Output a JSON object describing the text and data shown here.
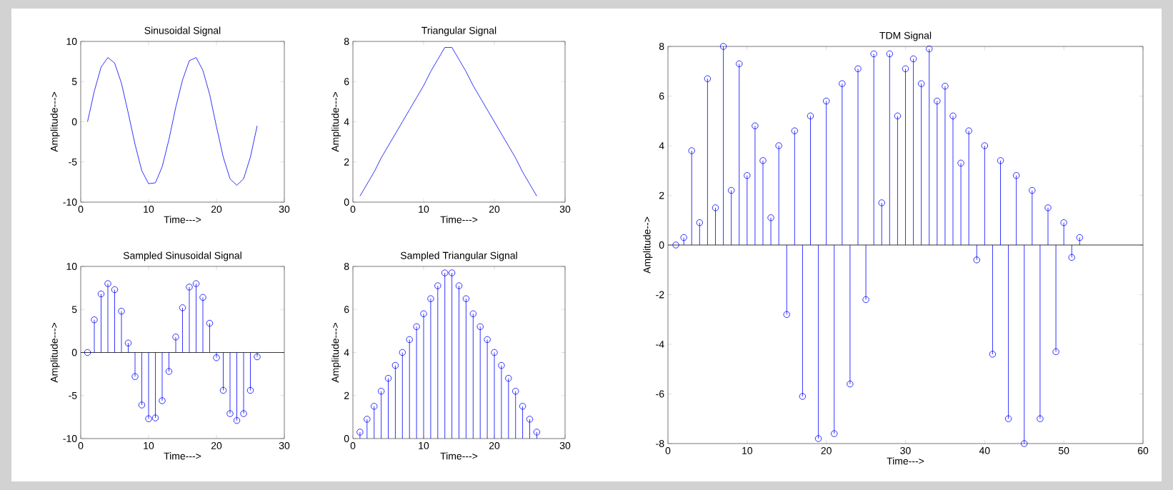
{
  "chart_data": [
    {
      "type": "line",
      "title": "Sinusoidal Signal",
      "xlabel": "Time--->",
      "ylabel": "Amplitude--->",
      "xlim": [
        0,
        30
      ],
      "ylim": [
        -10,
        10
      ],
      "xticks": [
        0,
        10,
        20,
        30
      ],
      "yticks": [
        -10,
        -5,
        0,
        5,
        10
      ],
      "color": "#0000ff",
      "x": [
        1,
        2,
        3,
        4,
        5,
        6,
        7,
        8,
        9,
        10,
        11,
        12,
        13,
        14,
        15,
        16,
        17,
        18,
        19,
        20,
        21,
        22,
        23,
        24,
        25,
        26
      ],
      "values": [
        0,
        3.8,
        6.8,
        8.0,
        7.3,
        4.8,
        1.1,
        -2.8,
        -6.1,
        -7.7,
        -7.6,
        -5.6,
        -2.2,
        1.8,
        5.2,
        7.6,
        8.0,
        6.4,
        3.4,
        -0.6,
        -4.4,
        -7.1,
        -7.9,
        -7.1,
        -4.4,
        -0.5
      ]
    },
    {
      "type": "line",
      "title": "Triangular Signal",
      "xlabel": "Time--->",
      "ylabel": "Amplitude--->",
      "xlim": [
        0,
        30
      ],
      "ylim": [
        0,
        8
      ],
      "xticks": [
        0,
        10,
        20,
        30
      ],
      "yticks": [
        0,
        2,
        4,
        6,
        8
      ],
      "color": "#0000ff",
      "x": [
        1,
        2,
        3,
        4,
        5,
        6,
        7,
        8,
        9,
        10,
        11,
        12,
        13,
        14,
        15,
        16,
        17,
        18,
        19,
        20,
        21,
        22,
        23,
        24,
        25,
        26
      ],
      "values": [
        0.3,
        0.9,
        1.5,
        2.2,
        2.8,
        3.4,
        4.0,
        4.6,
        5.2,
        5.8,
        6.5,
        7.1,
        7.7,
        7.7,
        7.1,
        6.5,
        5.8,
        5.2,
        4.6,
        4.0,
        3.4,
        2.8,
        2.2,
        1.5,
        0.9,
        0.3
      ]
    },
    {
      "type": "lollipop",
      "title": "Sampled Sinusoidal Signal",
      "xlabel": "Time--->",
      "ylabel": "Amplitude--->",
      "xlim": [
        0,
        30
      ],
      "ylim": [
        -10,
        10
      ],
      "xticks": [
        0,
        10,
        20,
        30
      ],
      "yticks": [
        -10,
        -5,
        0,
        5,
        10
      ],
      "color": "#0000ff",
      "marker": "circle",
      "ref_lines": [
        {
          "axis": "y",
          "value": 0,
          "color": "#000000"
        }
      ],
      "x": [
        1,
        2,
        3,
        4,
        5,
        6,
        7,
        8,
        9,
        10,
        11,
        12,
        13,
        14,
        15,
        16,
        17,
        18,
        19,
        20,
        21,
        22,
        23,
        24,
        25,
        26
      ],
      "values": [
        0,
        3.8,
        6.8,
        8.0,
        7.3,
        4.8,
        1.1,
        -2.8,
        -6.1,
        -7.7,
        -7.6,
        -5.6,
        -2.2,
        1.8,
        5.2,
        7.6,
        8.0,
        6.4,
        3.4,
        -0.6,
        -4.4,
        -7.1,
        -7.9,
        -7.1,
        -4.4,
        -0.5
      ]
    },
    {
      "type": "lollipop",
      "title": "Sampled Triangular Signal",
      "xlabel": "Time--->",
      "ylabel": "Amplitude--->",
      "xlim": [
        0,
        30
      ],
      "ylim": [
        0,
        8
      ],
      "xticks": [
        0,
        10,
        20,
        30
      ],
      "yticks": [
        0,
        2,
        4,
        6,
        8
      ],
      "color": "#0000ff",
      "marker": "circle",
      "x": [
        1,
        2,
        3,
        4,
        5,
        6,
        7,
        8,
        9,
        10,
        11,
        12,
        13,
        14,
        15,
        16,
        17,
        18,
        19,
        20,
        21,
        22,
        23,
        24,
        25,
        26
      ],
      "values": [
        0.3,
        0.9,
        1.5,
        2.2,
        2.8,
        3.4,
        4.0,
        4.6,
        5.2,
        5.8,
        6.5,
        7.1,
        7.7,
        7.7,
        7.1,
        6.5,
        5.8,
        5.2,
        4.6,
        4.0,
        3.4,
        2.8,
        2.2,
        1.5,
        0.9,
        0.3
      ]
    },
    {
      "type": "lollipop",
      "title": "TDM Signal",
      "xlabel": "Time--->",
      "ylabel": "Amplitude-->",
      "xlim": [
        0,
        60
      ],
      "ylim": [
        -8,
        8
      ],
      "xticks": [
        0,
        10,
        20,
        30,
        40,
        50,
        60
      ],
      "yticks": [
        -8,
        -6,
        -4,
        -2,
        0,
        2,
        4,
        6,
        8
      ],
      "color": "#0000ff",
      "marker": "circle",
      "ref_lines": [
        {
          "axis": "y",
          "value": 0,
          "color": "#000000"
        }
      ],
      "x": [
        1,
        2,
        3,
        4,
        5,
        6,
        7,
        8,
        9,
        10,
        11,
        12,
        13,
        14,
        15,
        16,
        17,
        18,
        19,
        20,
        21,
        22,
        23,
        24,
        25,
        26,
        27,
        28,
        29,
        30,
        31,
        32,
        33,
        34,
        35,
        36,
        37,
        38,
        39,
        40,
        41,
        42,
        43,
        44,
        45,
        46,
        47,
        48,
        49,
        50,
        51,
        52
      ],
      "values": [
        0,
        0.3,
        3.8,
        0.9,
        6.7,
        1.5,
        8.0,
        2.2,
        7.3,
        2.8,
        4.8,
        3.4,
        1.1,
        4.0,
        -2.8,
        4.6,
        -6.1,
        5.2,
        -7.8,
        5.8,
        -7.6,
        6.5,
        -5.6,
        7.1,
        -2.2,
        7.7,
        1.7,
        7.7,
        5.2,
        7.1,
        7.5,
        6.5,
        7.9,
        5.8,
        6.4,
        5.2,
        3.3,
        4.6,
        -0.6,
        4.0,
        -4.4,
        3.4,
        -7.0,
        2.8,
        -8.0,
        2.2,
        -7.0,
        1.5,
        -4.3,
        0.9,
        -0.5,
        0.3
      ]
    }
  ]
}
